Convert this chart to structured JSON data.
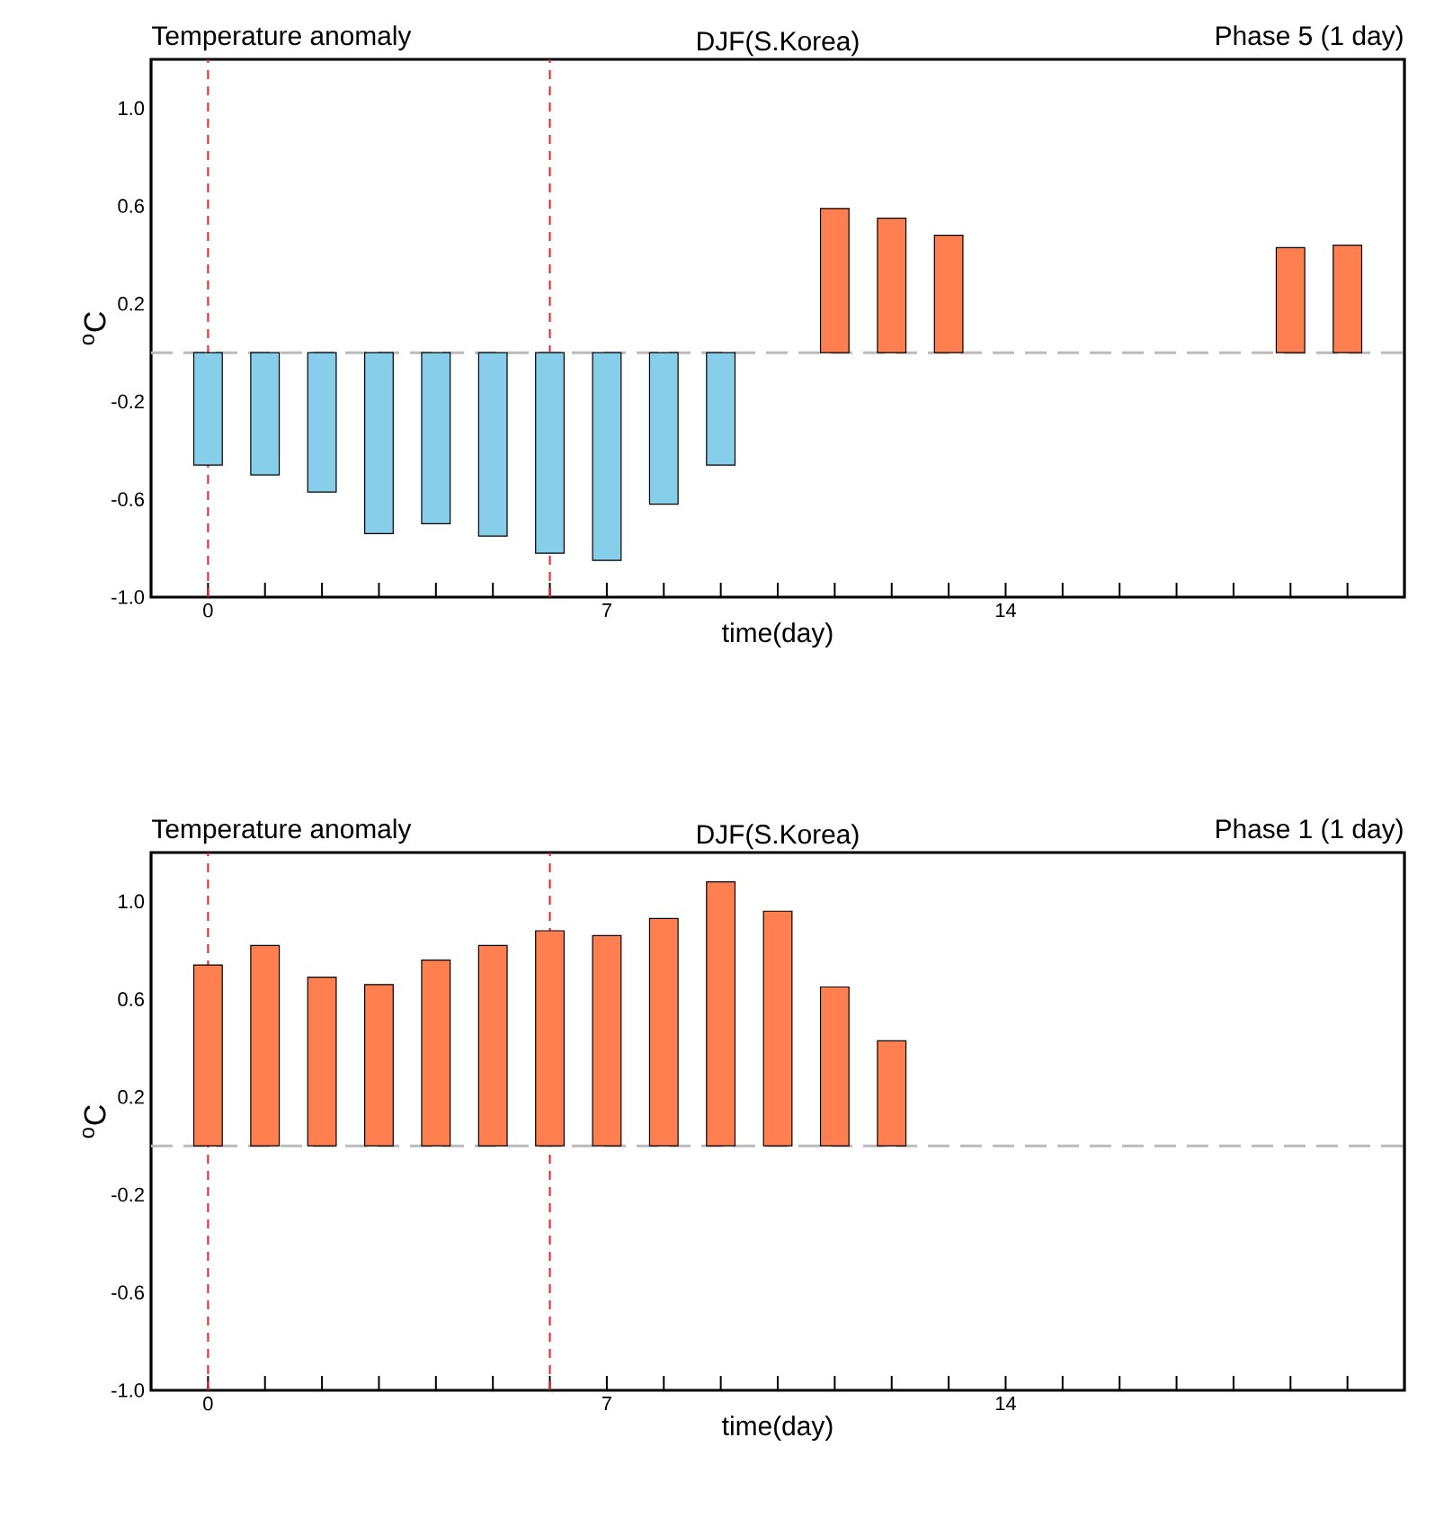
{
  "chart_data": [
    {
      "type": "bar",
      "title": "DJF(S.Korea)",
      "annotations": [
        "Temperature anomaly",
        "Phase 5 (1 day)"
      ],
      "xlabel": "time(day)",
      "ylabel": "$^{o}$C",
      "x": [
        0,
        1,
        2,
        3,
        4,
        5,
        6,
        7,
        8,
        9,
        10,
        11,
        12,
        13,
        14,
        15,
        16,
        17,
        18,
        19,
        20
      ],
      "values": [
        -0.46,
        -0.5,
        -0.57,
        -0.74,
        -0.7,
        -0.75,
        -0.82,
        -0.85,
        -0.62,
        -0.46,
        null,
        0.59,
        0.55,
        0.48,
        null,
        null,
        null,
        null,
        null,
        0.43,
        0.44
      ],
      "colors": [
        "#87ceeb",
        "#87ceeb",
        "#87ceeb",
        "#87ceeb",
        "#87ceeb",
        "#87ceeb",
        "#87ceeb",
        "#87ceeb",
        "#87ceeb",
        "#87ceeb",
        null,
        "#ff7f50",
        "#ff7f50",
        "#ff7f50",
        null,
        null,
        null,
        null,
        null,
        "#ff7f50",
        "#ff7f50"
      ],
      "xlim": [
        -1,
        21
      ],
      "ylim": [
        -1.0,
        1.2
      ],
      "xticks": [
        0,
        {
          "value": 1,
          "label": null
        },
        {
          "value": 2,
          "label": null
        },
        {
          "value": 3,
          "label": null
        },
        {
          "value": 4,
          "label": null
        },
        {
          "value": 5,
          "label": null
        },
        {
          "value": 6,
          "label": null
        },
        7,
        {
          "value": 8,
          "label": null
        },
        {
          "value": 9,
          "label": null
        },
        {
          "value": 10,
          "label": null
        },
        {
          "value": 11,
          "label": null
        },
        {
          "value": 12,
          "label": null
        },
        {
          "value": 13,
          "label": null
        },
        14,
        {
          "value": 15,
          "label": null
        },
        {
          "value": 16,
          "label": null
        },
        {
          "value": 17,
          "label": null
        },
        {
          "value": 18,
          "label": null
        },
        {
          "value": 19,
          "label": null
        },
        {
          "value": 20,
          "label": null
        }
      ],
      "yticks": [
        {
          "value": -1.0,
          "label": "-1.0"
        },
        {
          "value": -0.6,
          "label": "-0.6"
        },
        {
          "value": -0.2,
          "label": "-0.2"
        },
        {
          "value": 0.2,
          "label": "0.2"
        },
        {
          "value": 0.6,
          "label": "0.6"
        },
        {
          "value": 1.0,
          "label": "1.0"
        }
      ],
      "ref_lines": [
        {
          "axis": "x",
          "value": 0,
          "color": "#e8202a",
          "line_style": "dashed"
        },
        {
          "axis": "x",
          "value": 6,
          "color": "#e8202a",
          "line_style": "dashed"
        },
        {
          "axis": "y",
          "value": 0,
          "color": "#bbbbbb",
          "line_style": "dashed"
        }
      ]
    },
    {
      "type": "bar",
      "title": "DJF(S.Korea)",
      "annotations": [
        "Temperature anomaly",
        "Phase 1 (1 day)"
      ],
      "xlabel": "time(day)",
      "ylabel": "$^{o}$C",
      "x": [
        0,
        1,
        2,
        3,
        4,
        5,
        6,
        7,
        8,
        9,
        10,
        11,
        12
      ],
      "values": [
        0.74,
        0.82,
        0.69,
        0.66,
        0.76,
        0.82,
        0.88,
        0.86,
        0.93,
        1.08,
        0.96,
        0.65,
        0.43
      ],
      "colors": [
        "#ff7f50",
        "#ff7f50",
        "#ff7f50",
        "#ff7f50",
        "#ff7f50",
        "#ff7f50",
        "#ff7f50",
        "#ff7f50",
        "#ff7f50",
        "#ff7f50",
        "#ff7f50",
        "#ff7f50",
        "#ff7f50"
      ],
      "xlim": [
        -1,
        21
      ],
      "ylim": [
        -1.0,
        1.2
      ],
      "xticks": [
        0,
        {
          "value": 1,
          "label": null
        },
        {
          "value": 2,
          "label": null
        },
        {
          "value": 3,
          "label": null
        },
        {
          "value": 4,
          "label": null
        },
        {
          "value": 5,
          "label": null
        },
        {
          "value": 6,
          "label": null
        },
        7,
        {
          "value": 8,
          "label": null
        },
        {
          "value": 9,
          "label": null
        },
        {
          "value": 10,
          "label": null
        },
        {
          "value": 11,
          "label": null
        },
        {
          "value": 12,
          "label": null
        },
        {
          "value": 13,
          "label": null
        },
        14,
        {
          "value": 15,
          "label": null
        },
        {
          "value": 16,
          "label": null
        },
        {
          "value": 17,
          "label": null
        },
        {
          "value": 18,
          "label": null
        },
        {
          "value": 19,
          "label": null
        },
        {
          "value": 20,
          "label": null
        }
      ],
      "yticks": [
        {
          "value": -1.0,
          "label": "-1.0"
        },
        {
          "value": -0.6,
          "label": "-0.6"
        },
        {
          "value": -0.2,
          "label": "-0.2"
        },
        {
          "value": 0.2,
          "label": "0.2"
        },
        {
          "value": 0.6,
          "label": "0.6"
        },
        {
          "value": 1.0,
          "label": "1.0"
        }
      ],
      "ref_lines": [
        {
          "axis": "x",
          "value": 0,
          "color": "#e8202a",
          "line_style": "dashed"
        },
        {
          "axis": "x",
          "value": 6,
          "color": "#e8202a",
          "line_style": "dashed"
        },
        {
          "axis": "y",
          "value": 0,
          "color": "#bbbbbb",
          "line_style": "dashed"
        }
      ]
    }
  ]
}
